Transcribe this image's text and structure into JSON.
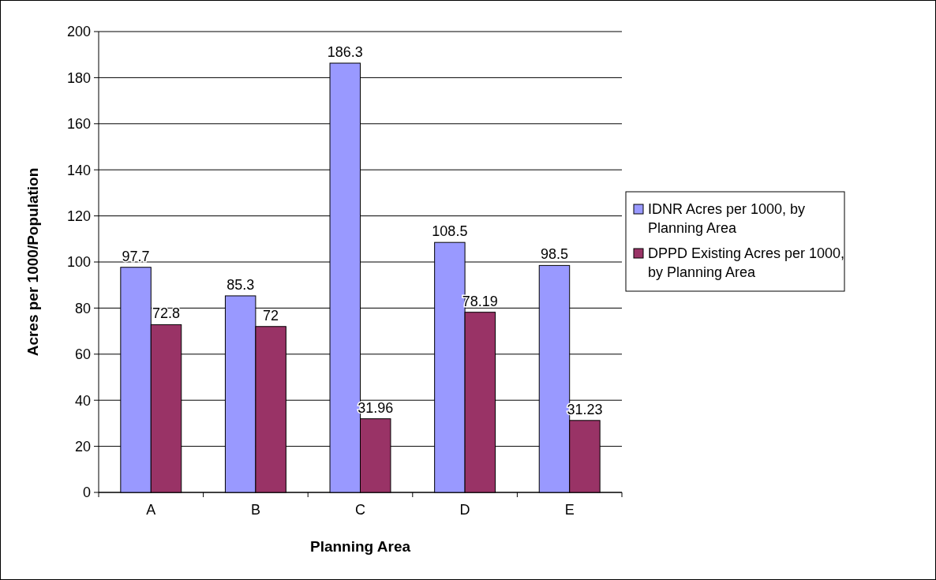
{
  "chart_data": {
    "type": "bar",
    "xlabel": "Planning Area",
    "ylabel": "Acres per 1000/Population",
    "categories": [
      "A",
      "B",
      "C",
      "D",
      "E"
    ],
    "series": [
      {
        "name": "IDNR Acres per 1000, by Planning Area",
        "color": "#9999ff",
        "values": [
          97.7,
          85.3,
          186.3,
          108.5,
          98.5
        ]
      },
      {
        "name": "DPPD Existing Acres per 1000, by Planning Area",
        "color": "#993366",
        "values": [
          72.8,
          72,
          31.96,
          78.19,
          31.23
        ]
      }
    ],
    "ylim": [
      0,
      200
    ],
    "yticks": [
      0,
      20,
      40,
      60,
      80,
      100,
      120,
      140,
      160,
      180,
      200
    ],
    "grid": "y",
    "legend": "right",
    "data_labels": true
  }
}
